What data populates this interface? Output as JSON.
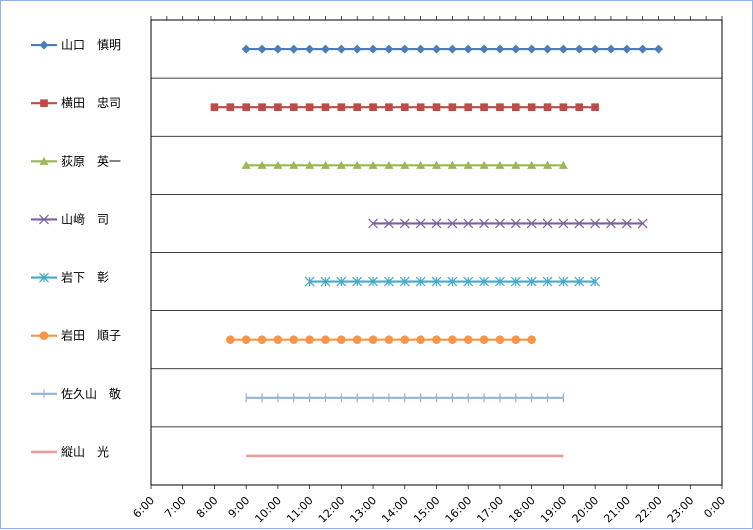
{
  "chart_data": {
    "type": "timeline",
    "x_axis": {
      "min": "6:00",
      "max": "0:00",
      "tick_labels": [
        "6:00",
        "7:00",
        "8:00",
        "9:00",
        "10:00",
        "11:00",
        "12:00",
        "13:00",
        "14:00",
        "15:00",
        "16:00",
        "17:00",
        "18:00",
        "19:00",
        "20:00",
        "21:00",
        "22:00",
        "23:00",
        "0:00"
      ]
    },
    "grid": "horizontal",
    "legend_position": "left",
    "series": [
      {
        "name": "山口　慎明",
        "marker": "diamond",
        "color": "#4a7ebb",
        "start": "9:00",
        "end": "22:00"
      },
      {
        "name": "横田　忠司",
        "marker": "square",
        "color": "#be4b48",
        "start": "8:00",
        "end": "20:00"
      },
      {
        "name": "荻原　英一",
        "marker": "triangle",
        "color": "#98b954",
        "start": "9:00",
        "end": "19:00"
      },
      {
        "name": "山﨑　司",
        "marker": "x",
        "color": "#7d60a0",
        "start": "13:00",
        "end": "21:30"
      },
      {
        "name": "岩下　彰",
        "marker": "star",
        "color": "#46aac5",
        "start": "11:00",
        "end": "20:00"
      },
      {
        "name": "岩田　順子",
        "marker": "circle",
        "color": "#f79646",
        "start": "8:30",
        "end": "18:00"
      },
      {
        "name": "佐久山　敬",
        "marker": "plus",
        "color": "#95b3d7",
        "start": "9:00",
        "end": "19:00"
      },
      {
        "name": "縦山　光",
        "marker": "none",
        "color": "#e6a09b",
        "start": "9:00",
        "end": "19:00"
      }
    ]
  }
}
